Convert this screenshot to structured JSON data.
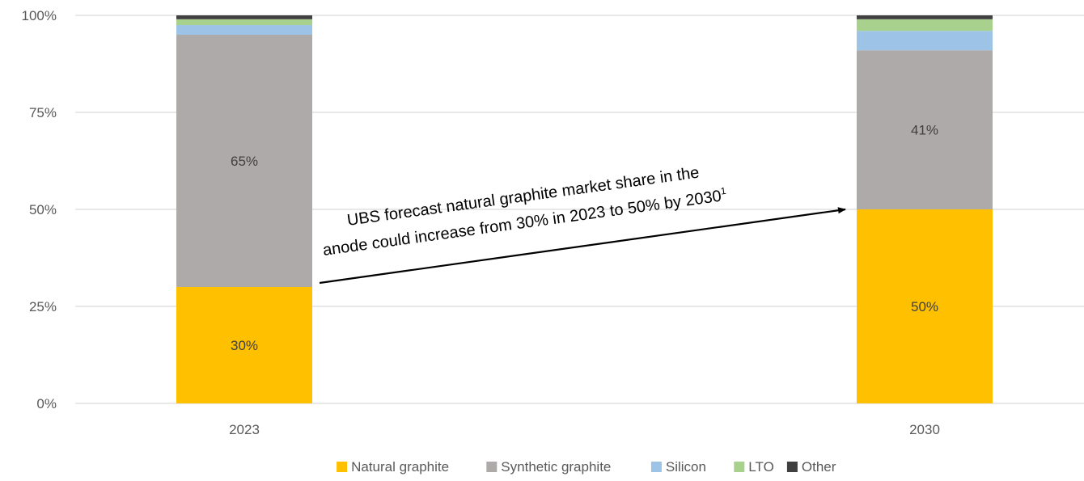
{
  "chart_data": {
    "type": "bar",
    "stacked": true,
    "categories": [
      "2023",
      "2030"
    ],
    "series": [
      {
        "name": "Natural graphite",
        "color": "#FFC000",
        "values": [
          30,
          50
        ],
        "labels": [
          "30%",
          "50%"
        ]
      },
      {
        "name": "Synthetic graphite",
        "color": "#AEAAAA",
        "values": [
          65,
          41
        ],
        "labels": [
          "65%",
          "41%"
        ]
      },
      {
        "name": "Silicon",
        "color": "#9DC3E6",
        "values": [
          2.5,
          5
        ],
        "labels": [
          "",
          ""
        ]
      },
      {
        "name": "LTO",
        "color": "#A9D18E",
        "values": [
          1.5,
          3
        ],
        "labels": [
          "",
          ""
        ]
      },
      {
        "name": "Other",
        "color": "#404040",
        "values": [
          1,
          1
        ],
        "labels": [
          "",
          ""
        ]
      }
    ],
    "ylim": [
      0,
      100
    ],
    "yticks": [
      "0%",
      "25%",
      "50%",
      "75%",
      "100%"
    ],
    "grid": true,
    "legend": "bottom",
    "annotation": {
      "line1": "UBS forecast natural graphite market share in the",
      "line2_main": "anode could increase from 30% in 2023 to 50% by 2030",
      "line2_sup": "1"
    }
  }
}
